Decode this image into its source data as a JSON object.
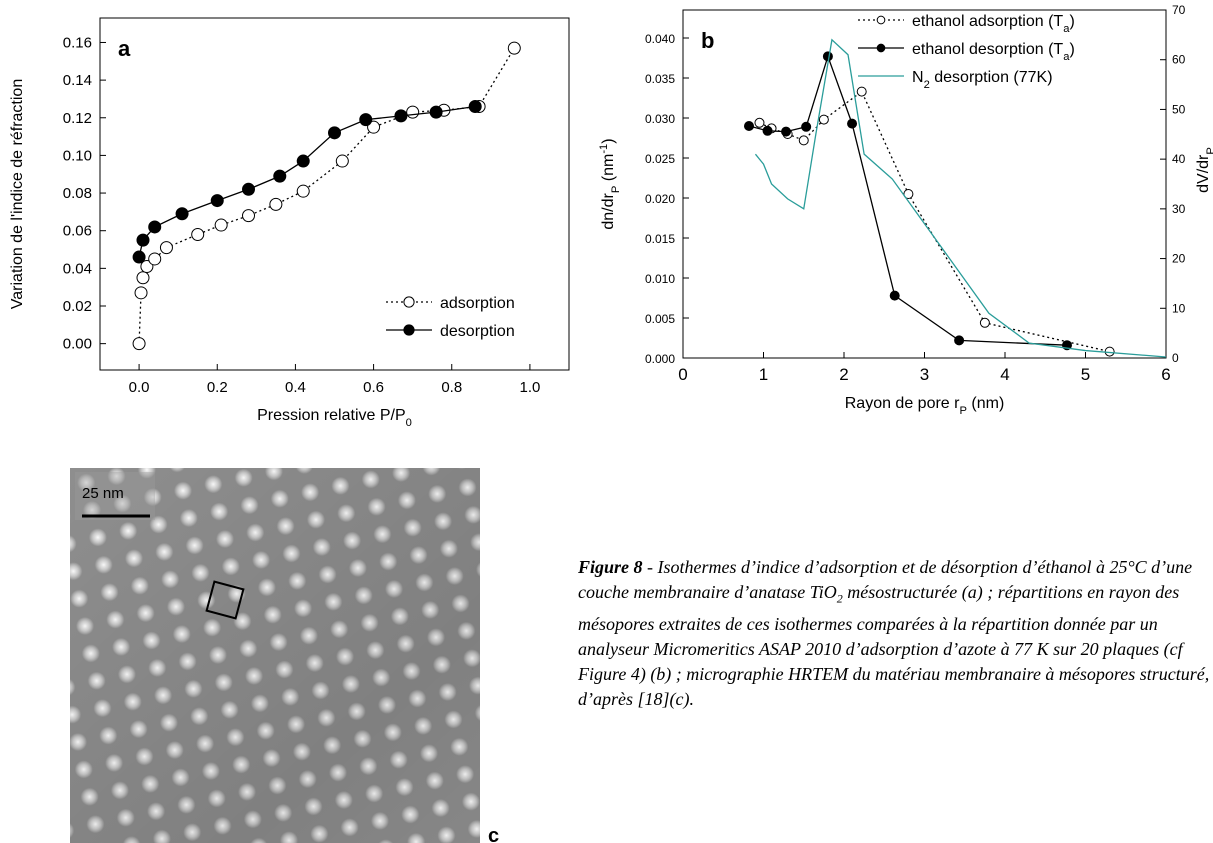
{
  "chart_data": [
    {
      "type": "line",
      "panel_label": "a",
      "x_label": [
        "Pression relative P/P",
        {
          "sub": "0"
        }
      ],
      "y_label": "Variation de l'indice de réfraction",
      "xlim": [
        -0.1,
        1.1
      ],
      "ylim": [
        -0.014,
        0.173
      ],
      "xticks": [
        {
          "value": 0,
          "label": "0.0"
        },
        0.2,
        0.4,
        0.6,
        0.8,
        {
          "value": 1,
          "label": "1.0"
        }
      ],
      "yticks": [
        {
          "value": 0,
          "label": "0.00"
        },
        0.02,
        0.04,
        0.06,
        0.08,
        {
          "value": 0.1,
          "label": "0.10"
        },
        0.12,
        0.14,
        0.16
      ],
      "legend": "lower right",
      "series": [
        {
          "name": "adsorption",
          "color": "#000000",
          "marker": "open",
          "line": "dotted",
          "x": [
            0.0,
            0.005,
            0.01,
            0.02,
            0.04,
            0.07,
            0.15,
            0.21,
            0.28,
            0.35,
            0.42,
            0.52,
            0.6,
            0.7,
            0.78,
            0.87,
            0.96
          ],
          "values": [
            0.0,
            0.027,
            0.035,
            0.041,
            0.045,
            0.051,
            0.058,
            0.063,
            0.068,
            0.074,
            0.081,
            0.097,
            0.115,
            0.123,
            0.124,
            0.126,
            0.157
          ]
        },
        {
          "name": "desorption",
          "color": "#000000",
          "marker": "filled",
          "line": "solid",
          "x": [
            0.0,
            0.01,
            0.04,
            0.11,
            0.2,
            0.28,
            0.36,
            0.42,
            0.5,
            0.58,
            0.67,
            0.76,
            0.86
          ],
          "values": [
            0.046,
            0.055,
            0.062,
            0.069,
            0.076,
            0.082,
            0.089,
            0.097,
            0.112,
            0.119,
            0.121,
            0.123,
            0.126
          ]
        }
      ]
    },
    {
      "type": "line",
      "panel_label": "b",
      "x_label": [
        "Rayon de pore r",
        {
          "sub": "P"
        },
        " (nm)"
      ],
      "y_label": [
        "dn/dr",
        {
          "sub": "P"
        },
        " (nm",
        {
          "sup": "-1"
        },
        ")"
      ],
      "y2_label": [
        "dV/dr",
        {
          "sub": "P"
        }
      ],
      "xlim": [
        0,
        6
      ],
      "ylim": [
        0,
        0.0435
      ],
      "y2lim": [
        0,
        70
      ],
      "xticks": [
        0,
        1,
        2,
        3,
        4,
        5,
        6
      ],
      "yticks": [
        {
          "value": 0,
          "label": "0.000"
        },
        0.005,
        {
          "value": 0.01,
          "label": "0.010"
        },
        0.015,
        {
          "value": 0.02,
          "label": "0.020"
        },
        0.025,
        {
          "value": 0.03,
          "label": "0.030"
        },
        0.035,
        {
          "value": 0.04,
          "label": "0.040"
        }
      ],
      "y2ticks": [
        0,
        10,
        20,
        30,
        40,
        50,
        60,
        70
      ],
      "legend": "upper right",
      "series": [
        {
          "name": [
            "ethanol adsorption (T",
            {
              "sub": "a"
            },
            ")"
          ],
          "color": "#000000",
          "marker": "open",
          "line": "dotted",
          "x": [
            0.95,
            1.1,
            1.3,
            1.5,
            1.75,
            2.22,
            2.8,
            3.75,
            5.3
          ],
          "values": [
            0.0294,
            0.0287,
            0.028,
            0.0272,
            0.0298,
            0.0333,
            0.0205,
            0.0044,
            0.0008
          ]
        },
        {
          "name": [
            "ethanol desorption (T",
            {
              "sub": "a"
            },
            ")"
          ],
          "color": "#000000",
          "marker": "filled",
          "line": "solid",
          "x": [
            0.82,
            1.05,
            1.28,
            1.53,
            1.8,
            2.1,
            2.63,
            3.43,
            4.77
          ],
          "values": [
            0.029,
            0.0284,
            0.0283,
            0.0289,
            0.0377,
            0.0293,
            0.0078,
            0.0022,
            0.0016
          ]
        },
        {
          "name": [
            "N",
            {
              "sub": "2"
            },
            " desorption (77K)"
          ],
          "color": "#2a9d9a",
          "marker": "none",
          "line": "solid",
          "axis": "y2",
          "x": [
            0.9,
            1.0,
            1.1,
            1.3,
            1.5,
            1.65,
            1.85,
            2.05,
            2.25,
            2.6,
            3.0,
            3.4,
            3.8,
            4.3,
            5.0,
            6.0
          ],
          "values": [
            41,
            39,
            35,
            32,
            30,
            45,
            64,
            61,
            41,
            36,
            27,
            18,
            9,
            3,
            1.5,
            0.2
          ]
        }
      ]
    }
  ],
  "micrograph": {
    "scale_label": "25 nm",
    "panel_label": "c"
  },
  "caption": [
    {
      "b": "Figure 8"
    },
    " - Isothermes d’indice d’adsorption et de désorption d’éthanol à 25°C d’une couche membranaire d’anatase TiO",
    {
      "sub": "2"
    },
    " mésostructurée (a) ; répartitions en rayon des mésopores extraites de ces isothermes  comparées à la répartition donnée par un analyseur Micromeritics ASAP 2010 d’adsorption d’azote à 77 K sur 20 plaques (cf Figure 4) (b) ; micrographie HRTEM du matériau membranaire à mésopores structuré, d’après [18](c)."
  ]
}
